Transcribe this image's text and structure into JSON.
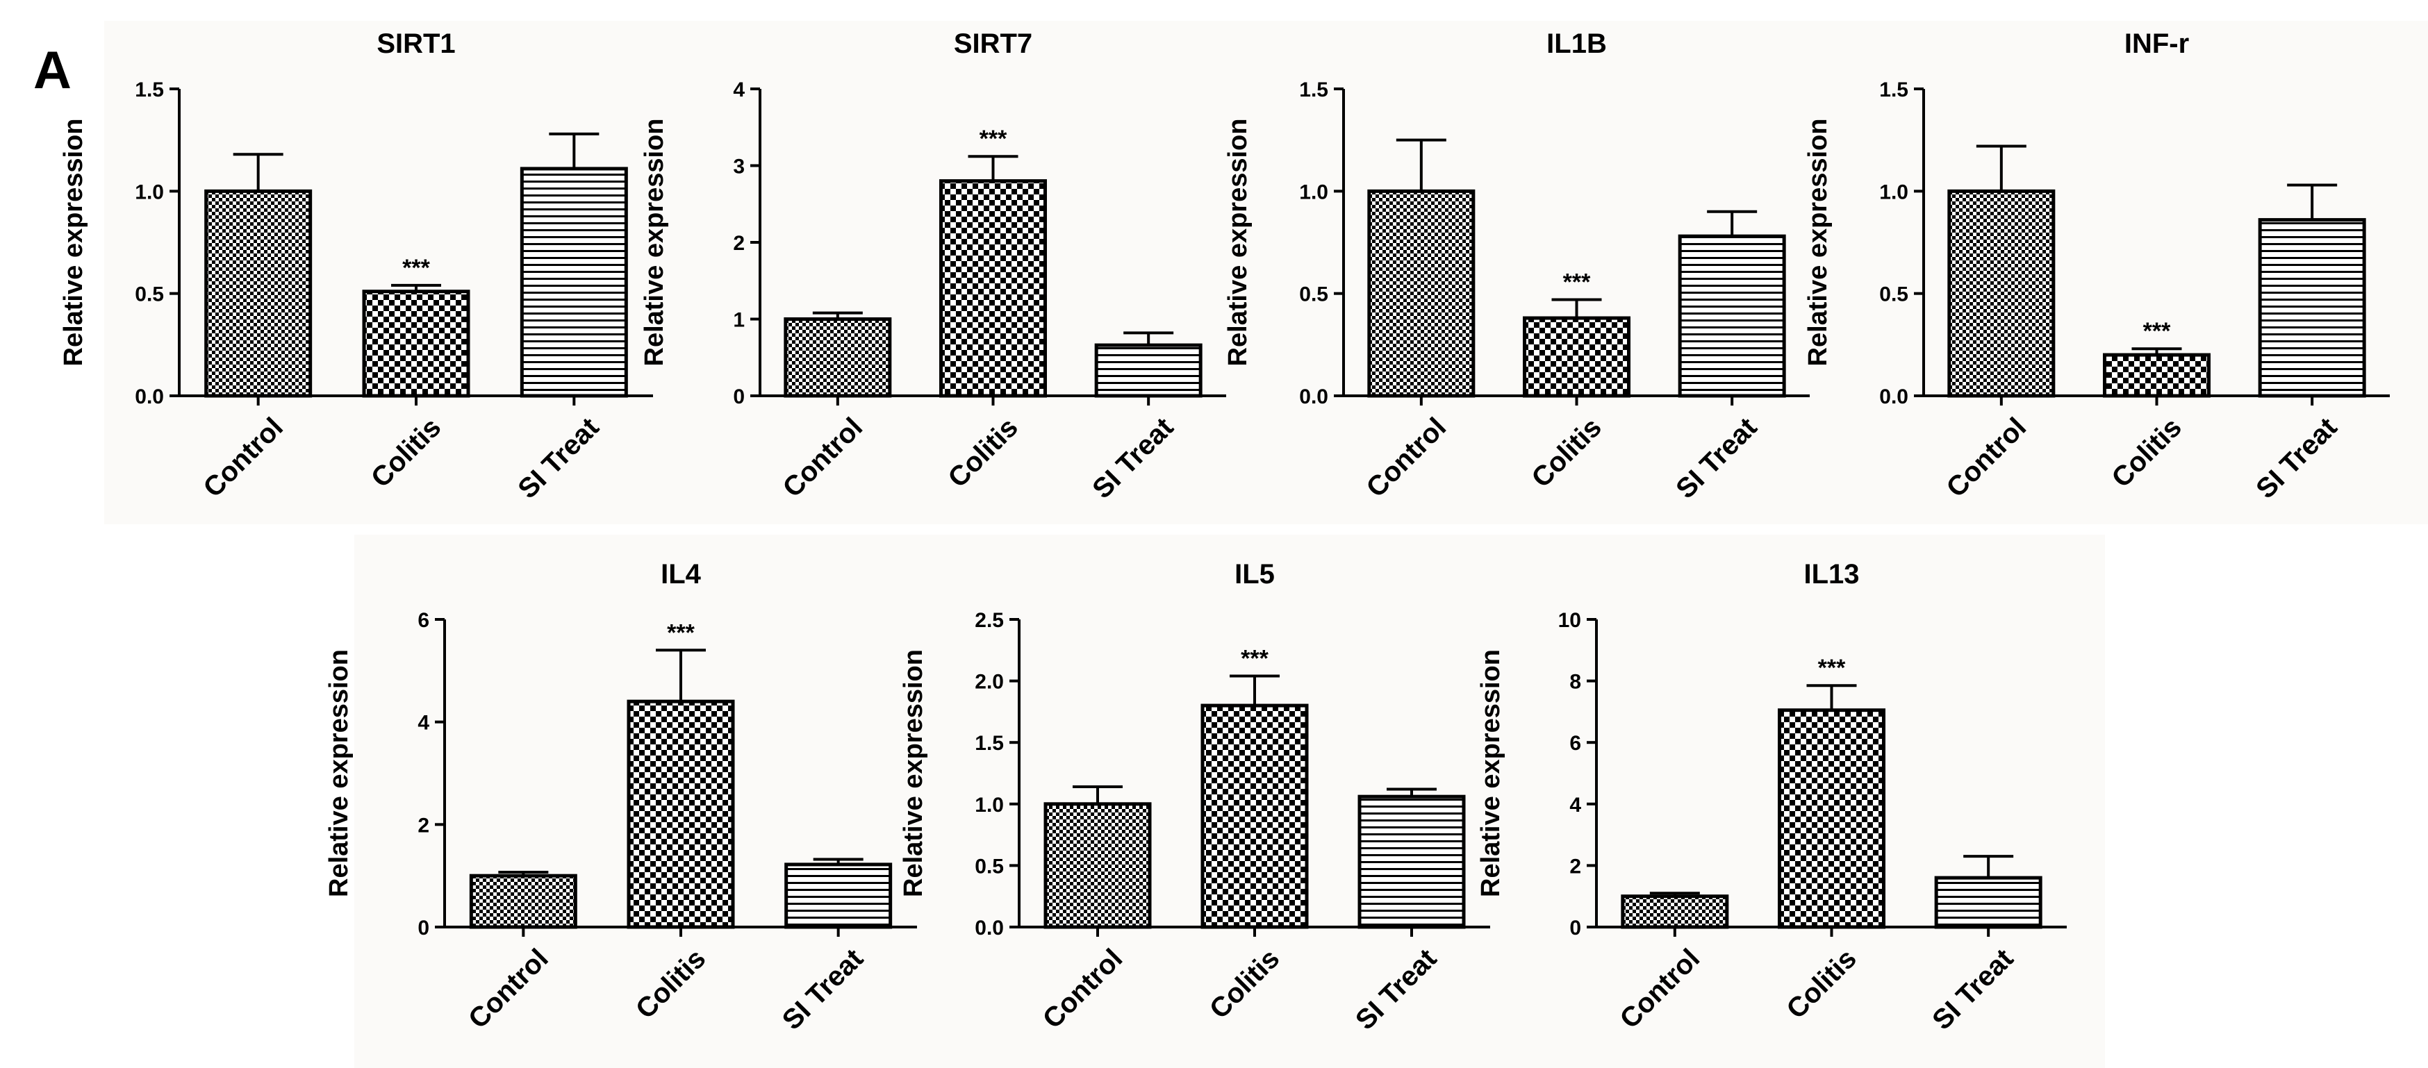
{
  "panel_label": "A",
  "colors": {
    "bar_outline": "#000000",
    "background": "#fbfaf8",
    "text": "#000000"
  },
  "chart_data": [
    {
      "type": "bar",
      "title": "SIRT1",
      "ylabel": "Relative expression",
      "categories": [
        "Control",
        "Colitis",
        "SI Treat"
      ],
      "values": [
        1.0,
        0.51,
        1.11
      ],
      "errors": [
        0.18,
        0.03,
        0.17
      ],
      "ylim": [
        0,
        1.5
      ],
      "yticks": [
        "0.0",
        "0.5",
        "1.0",
        "1.5"
      ],
      "patterns": [
        "checker-fine",
        "checker-coarse",
        "horizontal-lines"
      ],
      "annotations": [
        "",
        "***",
        ""
      ]
    },
    {
      "type": "bar",
      "title": "SIRT7",
      "ylabel": "Relative expression",
      "categories": [
        "Control",
        "Colitis",
        "SI Treat"
      ],
      "values": [
        1.0,
        2.8,
        0.66
      ],
      "errors": [
        0.08,
        0.32,
        0.16
      ],
      "ylim": [
        0,
        4
      ],
      "yticks": [
        "0",
        "1",
        "2",
        "3",
        "4"
      ],
      "patterns": [
        "checker-fine",
        "checker-coarse",
        "horizontal-lines"
      ],
      "annotations": [
        "",
        "***",
        ""
      ]
    },
    {
      "type": "bar",
      "title": "IL1B",
      "ylabel": "Relative expression",
      "categories": [
        "Control",
        "Colitis",
        "SI Treat"
      ],
      "values": [
        1.0,
        0.38,
        0.78
      ],
      "errors": [
        0.25,
        0.09,
        0.12
      ],
      "ylim": [
        0,
        1.5
      ],
      "yticks": [
        "0.0",
        "0.5",
        "1.0",
        "1.5"
      ],
      "patterns": [
        "checker-fine",
        "checker-coarse",
        "horizontal-lines"
      ],
      "annotations": [
        "",
        "***",
        ""
      ]
    },
    {
      "type": "bar",
      "title": "INF-r",
      "ylabel": "Relative expression",
      "categories": [
        "Control",
        "Colitis",
        "SI Treat"
      ],
      "values": [
        1.0,
        0.2,
        0.86
      ],
      "errors": [
        0.22,
        0.03,
        0.17
      ],
      "ylim": [
        0,
        1.5
      ],
      "yticks": [
        "0.0",
        "0.5",
        "1.0",
        "1.5"
      ],
      "patterns": [
        "checker-fine",
        "checker-coarse",
        "horizontal-lines"
      ],
      "annotations": [
        "",
        "***",
        ""
      ]
    },
    {
      "type": "bar",
      "title": "IL4",
      "ylabel": "Relative expression",
      "categories": [
        "Control",
        "Colitis",
        "SI Treat"
      ],
      "values": [
        1.0,
        4.4,
        1.22
      ],
      "errors": [
        0.07,
        1.0,
        0.1
      ],
      "ylim": [
        0,
        6
      ],
      "yticks": [
        "0",
        "2",
        "4",
        "6"
      ],
      "patterns": [
        "checker-fine",
        "checker-coarse",
        "horizontal-lines"
      ],
      "annotations": [
        "",
        "***",
        ""
      ]
    },
    {
      "type": "bar",
      "title": "IL5",
      "ylabel": "Relative expression",
      "categories": [
        "Control",
        "Colitis",
        "SI Treat"
      ],
      "values": [
        1.0,
        1.8,
        1.06
      ],
      "errors": [
        0.14,
        0.24,
        0.06
      ],
      "ylim": [
        0,
        2.5
      ],
      "yticks": [
        "0.0",
        "0.5",
        "1.0",
        "1.5",
        "2.0",
        "2.5"
      ],
      "patterns": [
        "checker-fine",
        "checker-coarse",
        "horizontal-lines"
      ],
      "annotations": [
        "",
        "***",
        ""
      ]
    },
    {
      "type": "bar",
      "title": "IL13",
      "ylabel": "Relative expression",
      "categories": [
        "Control",
        "Colitis",
        "SI Treat"
      ],
      "values": [
        1.0,
        7.05,
        1.6
      ],
      "errors": [
        0.1,
        0.8,
        0.7
      ],
      "ylim": [
        0,
        10
      ],
      "yticks": [
        "0",
        "2",
        "4",
        "6",
        "8",
        "10"
      ],
      "patterns": [
        "checker-fine",
        "checker-coarse",
        "horizontal-lines"
      ],
      "annotations": [
        "",
        "***",
        ""
      ]
    }
  ]
}
